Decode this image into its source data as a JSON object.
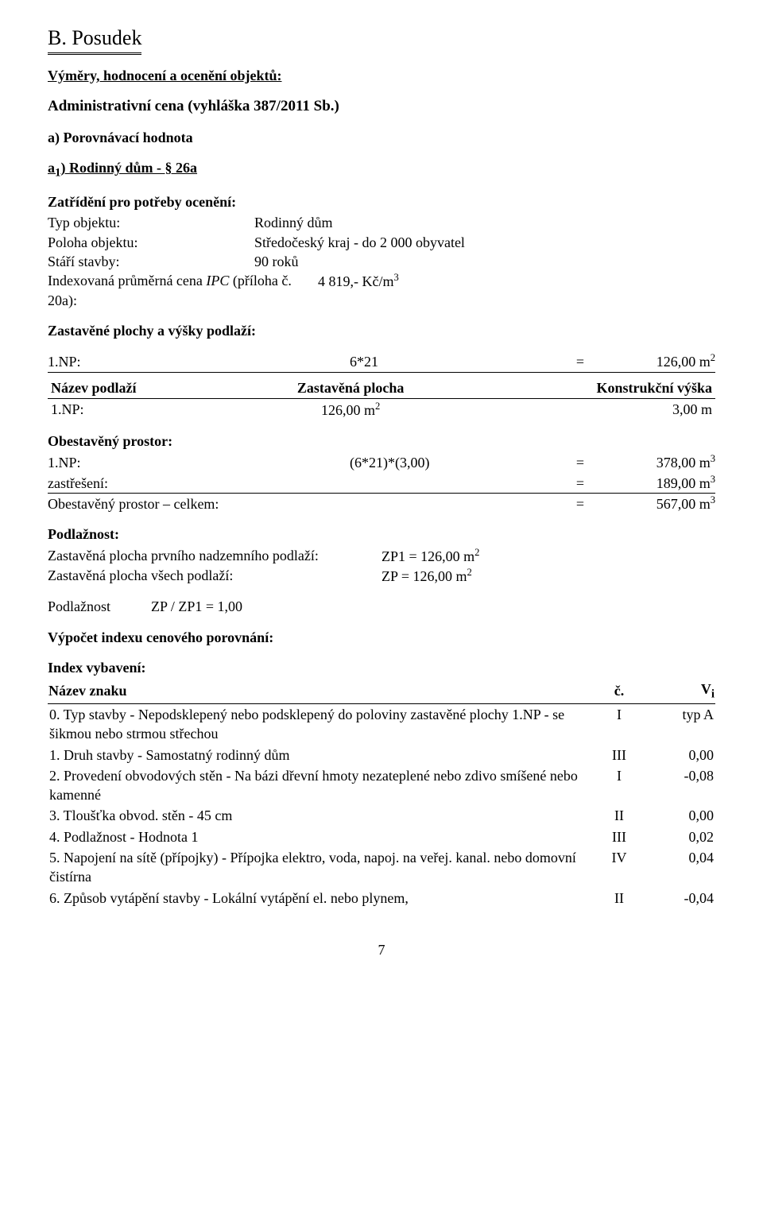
{
  "heading": "B. Posudek",
  "sub1": "Výměry, hodnocení a ocenění objektů:",
  "sub2": "Administrativní cena (vyhláška 387/2011 Sb.)",
  "sub3": "a) Porovnávací hodnota",
  "sub4_label": "a",
  "sub4_sub": "1",
  "sub4_rest": ") Rodinný dům - § 26a",
  "zatrideni_title": "Zatřídění pro potřeby ocenění:",
  "rows": {
    "typ_label": "Typ objektu:",
    "typ_value": "Rodinný dům",
    "poloha_label": "Poloha objektu:",
    "poloha_value": "Středočeský kraj - do 2 000 obyvatel",
    "stari_label": "Stáří stavby:",
    "stari_value": "90 roků",
    "ipc_label_pre": "Indexovaná průměrná cena ",
    "ipc_label_em": "IPC",
    "ipc_label_post": " (příloha č. 20a):",
    "ipc_value": "4 819,- Kč/m",
    "ipc_sup": "3"
  },
  "zastavene_title": "Zastavěné plochy a výšky podlaží:",
  "zast_calc": {
    "left": "1.NP:",
    "mid": "6*21",
    "eq": "=",
    "right": "126,00 m",
    "sup": "2"
  },
  "konstrukce": {
    "h1": "Název podlaží",
    "h2": "Zastavěná plocha",
    "h3": "Konstrukční výška",
    "r1c1": "1.NP:",
    "r1c2_val": "126,00 m",
    "r1c2_sup": "2",
    "r1c3": "3,00 m"
  },
  "obest_title": "Obestavěný prostor:",
  "obest_rows": [
    {
      "left": "1.NP:",
      "mid": "(6*21)*(3,00)",
      "eq": "=",
      "right": "378,00 m",
      "sup": "3",
      "border": ""
    },
    {
      "left": "zastřešení:",
      "mid": "",
      "eq": "=",
      "right": "189,00 m",
      "sup": "3",
      "border": "border-bottom"
    },
    {
      "left": "Obestavěný prostor – celkem:",
      "mid": "",
      "eq": "=",
      "right": "567,00 m",
      "sup": "3",
      "border": ""
    }
  ],
  "podlaznost_title": "Podlažnost:",
  "podl_rows": [
    {
      "label": "Zastavěná plocha prvního nadzemního podlaží:",
      "val": "ZP1 = 126,00 m",
      "sup": "2"
    },
    {
      "label": "Zastavěná plocha všech podlaží:",
      "val": "ZP = 126,00 m",
      "sup": "2"
    }
  ],
  "podl_ratio_label": "Podlažnost",
  "podl_ratio_val": "ZP / ZP1 = 1,00",
  "vypocet_title": "Výpočet indexu cenového porovnání:",
  "index_vyb_title": "Index vybavení:",
  "index_table": {
    "h1": "Název znaku",
    "h2": "č.",
    "h3": "V",
    "h3_sub": "i",
    "rows": [
      {
        "name": "0. Typ stavby - Nepodsklepený nebo podsklepený do poloviny zastavěné plochy 1.NP - se šikmou nebo strmou střechou",
        "col2": "I",
        "col3": "typ A"
      },
      {
        "name": "1. Druh stavby - Samostatný rodinný dům",
        "col2": "III",
        "col3": "0,00"
      },
      {
        "name": "2. Provedení obvodových stěn - Na bázi dřevní hmoty nezateplené nebo zdivo smíšené nebo kamenné",
        "col2": "I",
        "col3": "-0,08"
      },
      {
        "name": "3. Tloušťka obvod. stěn - 45 cm",
        "col2": "II",
        "col3": "0,00"
      },
      {
        "name": "4. Podlažnost - Hodnota 1",
        "col2": "III",
        "col3": "0,02"
      },
      {
        "name": "5. Napojení na sítě (přípojky) - Přípojka elektro, voda, napoj. na veřej. kanal. nebo domovní čistírna",
        "col2": "IV",
        "col3": "0,04"
      },
      {
        "name": "6. Způsob vytápění stavby - Lokální vytápění el. nebo plynem,",
        "col2": "II",
        "col3": "-0,04"
      }
    ]
  },
  "pageno": "7"
}
